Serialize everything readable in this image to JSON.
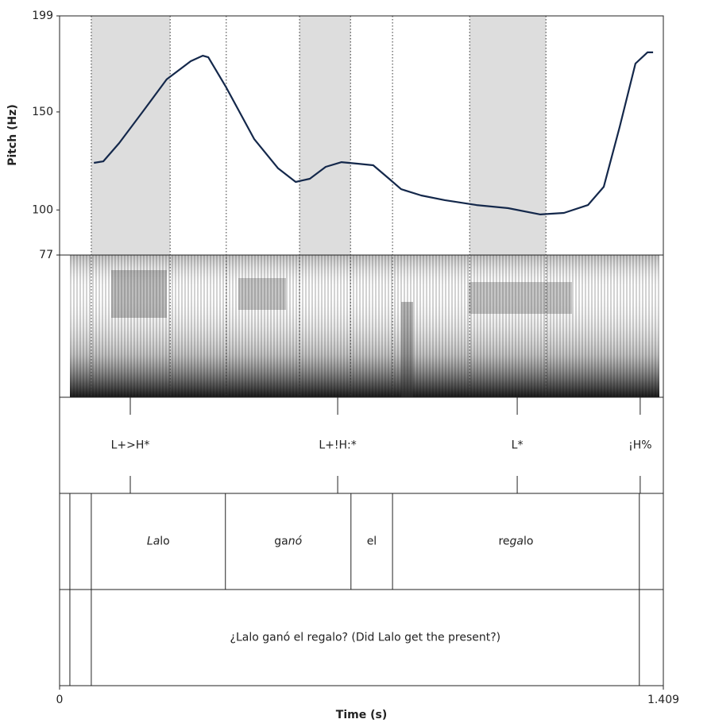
{
  "chart_data": {
    "type": "line",
    "y_label": "Pitch (Hz)",
    "x_label": "Time (s)",
    "xlim": [
      0,
      1.409
    ],
    "xticks": [
      0,
      1.409
    ],
    "ylim": [
      77,
      199
    ],
    "yticks": [
      77,
      100,
      150,
      199
    ],
    "x": [
      0.08,
      0.102,
      0.139,
      0.195,
      0.25,
      0.306,
      0.334,
      0.347,
      0.389,
      0.454,
      0.51,
      0.551,
      0.584,
      0.621,
      0.658,
      0.695,
      0.732,
      0.769,
      0.797,
      0.844,
      0.899,
      0.973,
      1.047,
      1.122,
      1.177,
      1.233,
      1.27,
      1.307,
      1.344,
      1.372,
      1.385
    ],
    "series": [
      {
        "color": "#14284b",
        "values": [
          124,
          124.8,
          134.1,
          150.4,
          166.6,
          175.9,
          178.7,
          177.9,
          162.5,
          136.2,
          121.2,
          114.3,
          115.9,
          122,
          124.4,
          123.6,
          122.8,
          115.9,
          110.6,
          107.4,
          105,
          102.5,
          100.9,
          97.7,
          98.5,
          102.5,
          111.8,
          142.3,
          174.7,
          180.4,
          180.4
        ]
      }
    ],
    "shaded_intervals": [
      [
        0.074,
        0.258
      ],
      [
        0.56,
        0.679
      ],
      [
        0.957,
        1.135
      ]
    ],
    "dotted_lines": [
      0.074,
      0.258,
      0.389,
      0.56,
      0.679,
      0.777,
      0.957,
      1.135,
      1.409
    ],
    "tones": [
      {
        "label": "L+>H*",
        "time": 0.165
      },
      {
        "label": "L+!H:*",
        "time": 0.649
      },
      {
        "label": "L*",
        "time": 1.068
      },
      {
        "label": "¡H%",
        "time": 1.355
      }
    ],
    "word_boundaries": [
      0.024,
      0.074,
      0.387,
      0.68,
      0.777,
      1.353
    ],
    "words": [
      {
        "start": 0.074,
        "end": 0.387,
        "parts": [
          {
            "text": "La",
            "italic": true
          },
          {
            "text": "lo"
          }
        ]
      },
      {
        "start": 0.387,
        "end": 0.68,
        "parts": [
          {
            "text": "ga"
          },
          {
            "text": "nó",
            "italic": true
          }
        ]
      },
      {
        "start": 0.68,
        "end": 0.777,
        "parts": [
          {
            "text": "el"
          }
        ]
      },
      {
        "start": 0.777,
        "end": 1.353,
        "parts": [
          {
            "text": "re"
          },
          {
            "text": "ga",
            "italic": true
          },
          {
            "text": "lo"
          }
        ]
      }
    ],
    "sentence_boundaries": [
      0.024,
      0.074,
      1.353
    ],
    "sentence": {
      "start": 0.074,
      "end": 1.353,
      "text": "¿Lalo ganó el regalo? (Did Lalo get the present?)"
    }
  }
}
